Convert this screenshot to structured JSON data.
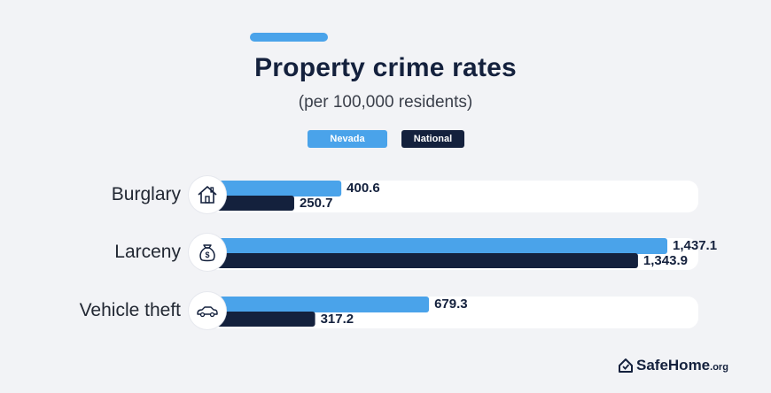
{
  "title": "Property crime rates",
  "subtitle": "(per 100,000 residents)",
  "legend": {
    "nevada": "Nevada",
    "national": "National"
  },
  "colors": {
    "nevada": "#4aa3ea",
    "national": "#14213d",
    "track": "#ffffff"
  },
  "icons": [
    "house-icon",
    "money-bag-icon",
    "car-icon"
  ],
  "brand": {
    "name": "SafeHome",
    "suffix": ".org"
  },
  "chart_data": {
    "type": "bar",
    "orientation": "horizontal",
    "title": "Property crime rates",
    "subtitle": "(per 100,000 residents)",
    "categories": [
      "Burglary",
      "Larceny",
      "Vehicle theft"
    ],
    "series": [
      {
        "name": "Nevada",
        "values": [
          400.6,
          1437.1,
          679.3
        ],
        "labels": [
          "400.6",
          "1,437.1",
          "679.3"
        ]
      },
      {
        "name": "National",
        "values": [
          250.7,
          1343.9,
          317.2
        ],
        "labels": [
          "250.7",
          "1,343.9",
          "317.2"
        ]
      }
    ],
    "xlim": [
      0,
      1520
    ],
    "legend_position": "top-center",
    "grid": false
  }
}
